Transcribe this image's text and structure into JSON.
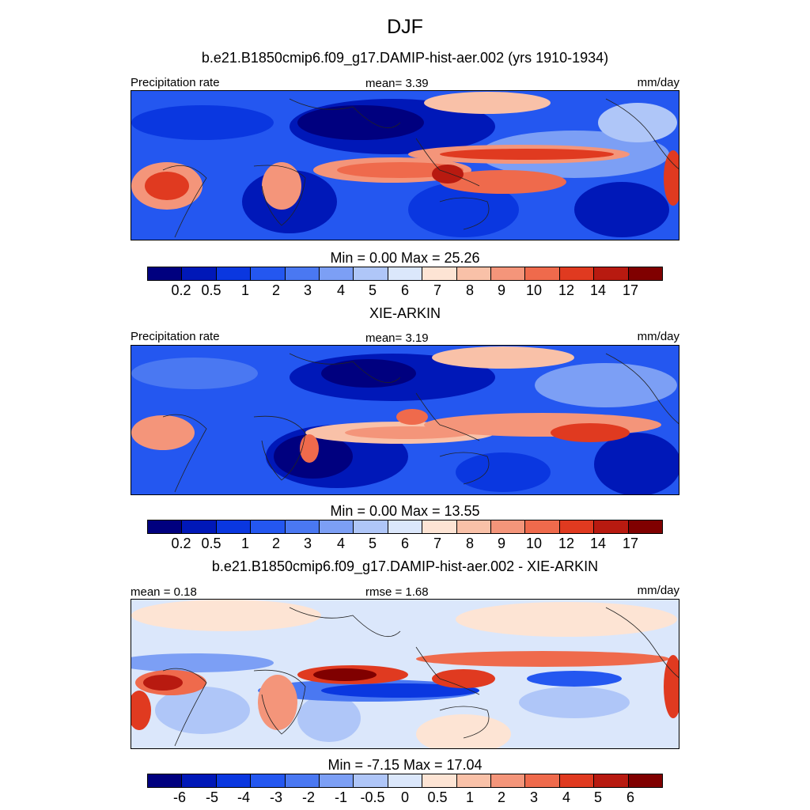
{
  "title": "DJF",
  "panels": [
    {
      "subtitle": "b.e21.B1850cmip6.f09_g17.DAMIP-hist-aer.002 (yrs 1910-1934)",
      "left_label": "Precipitation rate",
      "center_label": "mean=   3.39",
      "right_label": "mm/day",
      "minmax": "Min =   0.00 Max =  25.26",
      "colorbar_ticks": [
        "0.2",
        "0.5",
        "1",
        "2",
        "3",
        "4",
        "5",
        "6",
        "7",
        "8",
        "9",
        "10",
        "12",
        "14",
        "17"
      ]
    },
    {
      "subtitle": "XIE-ARKIN",
      "left_label": "Precipitation rate",
      "center_label": "mean=   3.19",
      "right_label": "mm/day",
      "minmax": "Min =   0.00 Max =  13.55",
      "colorbar_ticks": [
        "0.2",
        "0.5",
        "1",
        "2",
        "3",
        "4",
        "5",
        "6",
        "7",
        "8",
        "9",
        "10",
        "12",
        "14",
        "17"
      ]
    },
    {
      "subtitle": "b.e21.B1850cmip6.f09_g17.DAMIP-hist-aer.002 - XIE-ARKIN",
      "left_label": "mean =   0.18",
      "center_label": "rmse =   1.68",
      "right_label": "mm/day",
      "minmax": "Min =  -7.15 Max =  17.04",
      "colorbar_ticks": [
        "-6",
        "-5",
        "-4",
        "-3",
        "-2",
        "-1",
        "-0.5",
        "0",
        "0.5",
        "1",
        "2",
        "3",
        "4",
        "5",
        "6"
      ]
    }
  ],
  "colors": {
    "palette": [
      "#00007f",
      "#0018b8",
      "#0a37e0",
      "#2457f0",
      "#4a78f2",
      "#7c9ff5",
      "#afc6f8",
      "#dbe7fb",
      "#fde4d4",
      "#f9c1a8",
      "#f4957a",
      "#ef6a4c",
      "#e03a20",
      "#b81a10",
      "#800000"
    ],
    "coastline": "#222222"
  }
}
